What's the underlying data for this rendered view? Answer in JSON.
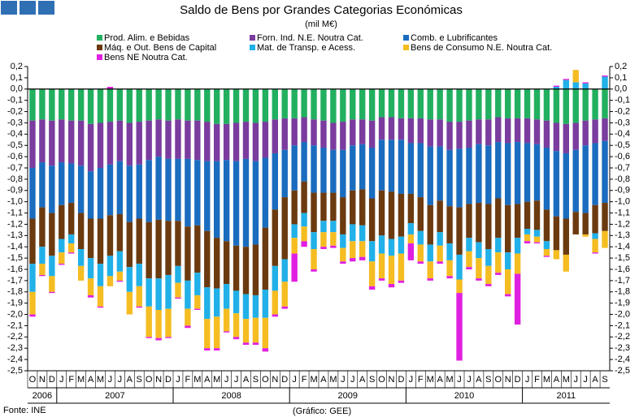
{
  "chart_data": {
    "type": "bar",
    "stacked": true,
    "title": "Saldo de Bens por Grandes Categorias Económicas",
    "subtitle": "(mil M€)",
    "source": "Fonte: INE",
    "credit": "(Gráfico: GEE)",
    "categories": [
      "O",
      "N",
      "D",
      "J",
      "F",
      "M",
      "A",
      "M",
      "J",
      "J",
      "A",
      "S",
      "O",
      "N",
      "D",
      "J",
      "F",
      "M",
      "A",
      "M",
      "J",
      "J",
      "A",
      "S",
      "O",
      "N",
      "D",
      "J",
      "F",
      "M",
      "A",
      "M",
      "J",
      "J",
      "A",
      "S",
      "O",
      "N",
      "D",
      "J",
      "F",
      "M",
      "A",
      "M",
      "J",
      "J",
      "A",
      "S",
      "O",
      "N",
      "D",
      "J",
      "F",
      "M",
      "A",
      "M",
      "J",
      "J",
      "A",
      "S"
    ],
    "years": [
      "2006",
      "2007",
      "2008",
      "2009",
      "2010",
      "2011"
    ],
    "ylim": [
      -2.5,
      0.2
    ],
    "yticks": [
      {
        "value": 0.2,
        "label": "0,2"
      },
      {
        "value": 0.1,
        "label": "0,1"
      },
      {
        "value": 0,
        "label": "0,0"
      },
      {
        "value": -0.1,
        "label": "-0,1"
      },
      {
        "value": -0.2,
        "label": "-0,2"
      },
      {
        "value": -0.3,
        "label": "-0,3"
      },
      {
        "value": -0.4,
        "label": "-0,4"
      },
      {
        "value": -0.5,
        "label": "-0,5"
      },
      {
        "value": -0.6,
        "label": "-0,6"
      },
      {
        "value": -0.7,
        "label": "-0,7"
      },
      {
        "value": -0.8,
        "label": "-0,8"
      },
      {
        "value": -0.9,
        "label": "-0,9"
      },
      {
        "value": -1,
        "label": "-1,0"
      },
      {
        "value": -1.1,
        "label": "-1,1"
      },
      {
        "value": -1.2,
        "label": "-1,2"
      },
      {
        "value": -1.3,
        "label": "-1,3"
      },
      {
        "value": -1.4,
        "label": "-1,4"
      },
      {
        "value": -1.5,
        "label": "-1,5"
      },
      {
        "value": -1.6,
        "label": "-1,6"
      },
      {
        "value": -1.7,
        "label": "-1,7"
      },
      {
        "value": -1.8,
        "label": "-1,8"
      },
      {
        "value": -1.9,
        "label": "-1,9"
      },
      {
        "value": -2,
        "label": "-2,0"
      },
      {
        "value": -2.1,
        "label": "-2,1"
      },
      {
        "value": -2.2,
        "label": "-2,2"
      },
      {
        "value": -2.3,
        "label": "-2,3"
      },
      {
        "value": -2.4,
        "label": "-2,4"
      },
      {
        "value": -2.5,
        "label": "-2,5"
      }
    ],
    "series": [
      {
        "name": "Prod. Alim. e Bebidas",
        "color": "#22b060",
        "values": [
          -0.28,
          -0.27,
          -0.28,
          -0.27,
          -0.28,
          -0.28,
          -0.31,
          -0.3,
          -0.29,
          -0.28,
          -0.3,
          -0.29,
          -0.28,
          -0.27,
          -0.28,
          -0.27,
          -0.28,
          -0.28,
          -0.29,
          -0.31,
          -0.31,
          -0.3,
          -0.29,
          -0.3,
          -0.29,
          -0.27,
          -0.26,
          -0.26,
          -0.25,
          -0.27,
          -0.28,
          -0.3,
          -0.29,
          -0.27,
          -0.27,
          -0.28,
          -0.25,
          -0.25,
          -0.26,
          -0.26,
          -0.26,
          -0.27,
          -0.27,
          -0.29,
          -0.29,
          -0.28,
          -0.27,
          -0.27,
          -0.25,
          -0.26,
          -0.26,
          -0.26,
          -0.27,
          -0.28,
          -0.3,
          -0.31,
          -0.3,
          -0.28,
          -0.27,
          -0.26
        ]
      },
      {
        "name": "Forn. Ind. N.E. Noutra Cat.",
        "color": "#7a3c9e",
        "values": [
          -0.42,
          -0.38,
          -0.4,
          -0.38,
          -0.38,
          -0.4,
          -0.42,
          -0.4,
          -0.38,
          -0.36,
          -0.38,
          -0.38,
          -0.35,
          -0.33,
          -0.34,
          -0.35,
          -0.34,
          -0.35,
          -0.35,
          -0.33,
          -0.32,
          -0.34,
          -0.33,
          -0.34,
          -0.32,
          -0.3,
          -0.28,
          -0.24,
          -0.22,
          -0.23,
          -0.24,
          -0.24,
          -0.25,
          -0.23,
          -0.22,
          -0.24,
          -0.2,
          -0.2,
          -0.19,
          -0.22,
          -0.22,
          -0.24,
          -0.24,
          -0.25,
          -0.24,
          -0.24,
          -0.22,
          -0.23,
          -0.22,
          -0.22,
          -0.21,
          -0.22,
          -0.22,
          -0.24,
          -0.25,
          -0.26,
          -0.24,
          -0.22,
          -0.21,
          -0.2
        ]
      },
      {
        "name": "Comb. e Lubrificantes",
        "color": "#1a6cbf",
        "values": [
          -0.45,
          -0.4,
          -0.42,
          -0.38,
          -0.35,
          -0.42,
          -0.42,
          -0.45,
          -0.45,
          -0.47,
          -0.5,
          -0.48,
          -0.55,
          -0.56,
          -0.55,
          -0.55,
          -0.6,
          -0.58,
          -0.62,
          -0.68,
          -0.72,
          -0.75,
          -0.78,
          -0.74,
          -0.62,
          -0.5,
          -0.42,
          -0.4,
          -0.35,
          -0.42,
          -0.4,
          -0.38,
          -0.42,
          -0.4,
          -0.4,
          -0.45,
          -0.45,
          -0.46,
          -0.48,
          -0.45,
          -0.48,
          -0.52,
          -0.48,
          -0.5,
          -0.52,
          -0.5,
          -0.52,
          -0.52,
          -0.5,
          -0.55,
          -0.55,
          -0.52,
          -0.5,
          -0.55,
          -0.58,
          -0.58,
          -0.55,
          -0.6,
          -0.55,
          -0.55
        ]
      },
      {
        "name": "Máq. e Out. Bens de Capital",
        "color": "#6b3a0f",
        "values": [
          -0.4,
          -0.35,
          -0.38,
          -0.3,
          -0.28,
          -0.32,
          -0.35,
          -0.4,
          -0.36,
          -0.33,
          -0.4,
          -0.4,
          -0.5,
          -0.52,
          -0.48,
          -0.4,
          -0.48,
          -0.42,
          -0.5,
          -0.45,
          -0.38,
          -0.4,
          -0.42,
          -0.45,
          -0.55,
          -0.5,
          -0.55,
          -0.3,
          -0.28,
          -0.35,
          -0.25,
          -0.25,
          -0.33,
          -0.3,
          -0.32,
          -0.38,
          -0.4,
          -0.42,
          -0.38,
          -0.26,
          -0.3,
          -0.35,
          -0.28,
          -0.33,
          -0.42,
          -0.3,
          -0.35,
          -0.4,
          -0.35,
          -0.42,
          -0.3,
          -0.24,
          -0.26,
          -0.28,
          -0.3,
          -0.32,
          -0.2,
          -0.19,
          -0.25,
          -0.25
        ]
      },
      {
        "name": "Mat. de Transp. e Acess.",
        "color": "#22b0e8",
        "values": [
          -0.25,
          -0.15,
          -0.18,
          -0.12,
          -0.08,
          -0.15,
          -0.18,
          -0.2,
          -0.18,
          -0.18,
          -0.22,
          -0.2,
          -0.25,
          -0.28,
          -0.3,
          -0.15,
          -0.25,
          -0.2,
          -0.28,
          -0.25,
          -0.22,
          -0.2,
          -0.22,
          -0.2,
          -0.25,
          -0.22,
          -0.2,
          -0.12,
          -0.12,
          -0.15,
          -0.1,
          -0.1,
          -0.12,
          -0.15,
          -0.14,
          -0.18,
          -0.16,
          -0.15,
          -0.15,
          -0.1,
          -0.12,
          -0.15,
          -0.12,
          -0.15,
          -0.22,
          -0.12,
          -0.14,
          -0.15,
          -0.13,
          -0.15,
          -0.14,
          -0.05,
          -0.06,
          -0.07,
          0.02,
          0.08,
          0.06,
          0.05,
          -0.05,
          0.11
        ]
      },
      {
        "name": "Bens de Consumo N.E. Noutra Cat.",
        "color": "#f5bd22",
        "values": [
          -0.2,
          -0.1,
          -0.14,
          -0.1,
          -0.08,
          -0.13,
          -0.15,
          -0.18,
          -0.09,
          -0.08,
          -0.2,
          -0.18,
          -0.27,
          -0.25,
          -0.25,
          -0.13,
          -0.15,
          -0.12,
          -0.26,
          -0.28,
          -0.2,
          -0.21,
          -0.21,
          -0.22,
          -0.27,
          -0.21,
          -0.22,
          -0.14,
          -0.13,
          -0.18,
          -0.13,
          -0.12,
          -0.12,
          -0.15,
          -0.14,
          -0.22,
          -0.22,
          -0.25,
          -0.24,
          -0.08,
          -0.15,
          -0.15,
          -0.14,
          -0.14,
          -0.12,
          -0.14,
          -0.18,
          -0.16,
          -0.18,
          -0.22,
          -0.18,
          -0.06,
          -0.05,
          -0.06,
          -0.08,
          -0.15,
          0.11,
          -0.02,
          -0.12,
          -0.15
        ]
      },
      {
        "name": "Bens NE Noutra Cat.",
        "color": "#e020e0",
        "values": [
          -0.02,
          -0.01,
          -0.01,
          -0.01,
          -0.01,
          0,
          -0.02,
          -0.01,
          0.02,
          -0.01,
          0,
          -0.01,
          -0.01,
          -0.02,
          -0.01,
          -0.01,
          -0.02,
          -0.01,
          -0.02,
          -0.02,
          -0.01,
          -0.02,
          -0.02,
          -0.02,
          -0.03,
          -0.02,
          -0.02,
          -0.25,
          -0.05,
          -0.02,
          -0.02,
          -0.02,
          -0.02,
          -0.03,
          -0.03,
          -0.03,
          -0.02,
          -0.03,
          -0.02,
          -0.15,
          -0.02,
          -0.02,
          -0.02,
          -0.02,
          -0.6,
          -0.02,
          -0.02,
          -0.02,
          -0.02,
          -0.02,
          -0.45,
          -0.02,
          -0.01,
          -0.01,
          0.01,
          0.01,
          0,
          0.01,
          -0.01,
          0.01
        ]
      }
    ]
  }
}
